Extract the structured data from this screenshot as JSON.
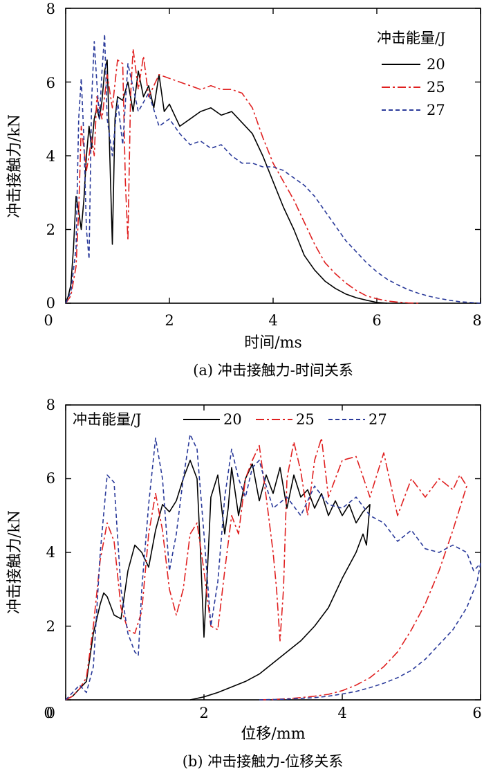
{
  "chart_data": [
    {
      "type": "line",
      "caption": "(a) 冲击接触力-时间关系",
      "xlabel": "时间/ms",
      "ylabel": "冲击接触力/kN",
      "xlim": [
        0,
        8
      ],
      "ylim": [
        0,
        8
      ],
      "xticks": [
        "0",
        "2",
        "4",
        "6",
        "8"
      ],
      "yticks": [
        "2",
        "4",
        "6",
        "8"
      ],
      "legend_title": "冲击能量/J",
      "legend_position": "top-right",
      "series": [
        {
          "name": "20",
          "color": "#000000",
          "dash": "solid",
          "x": [
            0,
            0.05,
            0.1,
            0.15,
            0.2,
            0.25,
            0.3,
            0.35,
            0.4,
            0.45,
            0.5,
            0.55,
            0.6,
            0.65,
            0.7,
            0.75,
            0.8,
            0.85,
            0.9,
            0.95,
            1.0,
            1.1,
            1.2,
            1.3,
            1.4,
            1.5,
            1.6,
            1.7,
            1.8,
            1.9,
            2.0,
            2.2,
            2.4,
            2.6,
            2.8,
            3.0,
            3.2,
            3.4,
            3.6,
            3.8,
            4.0,
            4.2,
            4.4,
            4.6,
            4.8,
            5.0,
            5.2,
            5.4,
            5.6,
            5.8,
            6.0,
            6.2
          ],
          "y": [
            0,
            0.2,
            0.5,
            1.5,
            2.9,
            2.5,
            2.0,
            2.8,
            4.0,
            4.8,
            4.2,
            5.0,
            5.3,
            5.0,
            5.5,
            6.3,
            6.6,
            4.0,
            1.6,
            5.0,
            5.6,
            5.5,
            6.0,
            5.2,
            6.3,
            5.6,
            5.9,
            5.3,
            6.2,
            5.2,
            5.4,
            4.8,
            5.0,
            5.2,
            5.3,
            5.1,
            5.2,
            4.9,
            4.6,
            4.0,
            3.3,
            2.6,
            2.0,
            1.3,
            0.9,
            0.6,
            0.4,
            0.25,
            0.15,
            0.08,
            0.02,
            0
          ]
        },
        {
          "name": "25",
          "color": "#e02020",
          "dash": "dashdot",
          "x": [
            0,
            0.1,
            0.2,
            0.25,
            0.3,
            0.35,
            0.4,
            0.45,
            0.5,
            0.55,
            0.6,
            0.7,
            0.8,
            0.9,
            1.0,
            1.1,
            1.15,
            1.2,
            1.25,
            1.3,
            1.4,
            1.5,
            1.6,
            1.8,
            2.0,
            2.2,
            2.4,
            2.6,
            2.8,
            3.0,
            3.2,
            3.4,
            3.6,
            3.8,
            4.0,
            4.2,
            4.4,
            4.6,
            4.8,
            5.0,
            5.2,
            5.4,
            5.6,
            5.8,
            6.0,
            6.2,
            6.4,
            6.6,
            6.8
          ],
          "y": [
            0,
            0.2,
            1.0,
            2.5,
            4.8,
            4.2,
            3.6,
            4.0,
            4.5,
            4.0,
            5.6,
            5.0,
            6.2,
            5.3,
            6.6,
            6.5,
            3.3,
            1.7,
            5.6,
            6.9,
            5.8,
            6.7,
            5.6,
            6.2,
            6.1,
            6.0,
            5.9,
            5.8,
            5.9,
            5.8,
            5.8,
            5.7,
            5.3,
            4.5,
            3.8,
            3.3,
            2.8,
            2.2,
            1.6,
            1.1,
            0.8,
            0.55,
            0.35,
            0.2,
            0.12,
            0.06,
            0.03,
            0.01,
            0
          ]
        },
        {
          "name": "27",
          "color": "#2a3a9a",
          "dash": "dashed",
          "x": [
            0,
            0.1,
            0.2,
            0.25,
            0.3,
            0.35,
            0.4,
            0.45,
            0.5,
            0.55,
            0.6,
            0.65,
            0.7,
            0.75,
            0.8,
            0.9,
            1.0,
            1.1,
            1.2,
            1.4,
            1.6,
            1.8,
            2.0,
            2.2,
            2.4,
            2.6,
            2.8,
            3.0,
            3.2,
            3.4,
            3.6,
            3.8,
            4.0,
            4.2,
            4.4,
            4.6,
            4.8,
            5.0,
            5.2,
            5.4,
            5.6,
            5.8,
            6.0,
            6.2,
            6.4,
            6.6,
            6.8,
            7.0,
            7.2,
            7.4,
            7.6,
            7.8,
            8.0
          ],
          "y": [
            0,
            0.3,
            1.5,
            5.0,
            6.1,
            4.5,
            2.0,
            1.2,
            5.5,
            7.1,
            6.0,
            5.0,
            6.3,
            7.3,
            5.0,
            4.0,
            5.5,
            4.3,
            6.5,
            5.2,
            5.7,
            4.8,
            5.0,
            4.6,
            4.3,
            4.4,
            4.2,
            4.3,
            4.0,
            3.8,
            3.8,
            3.7,
            3.7,
            3.6,
            3.4,
            3.2,
            2.9,
            2.5,
            2.1,
            1.7,
            1.4,
            1.1,
            0.85,
            0.65,
            0.5,
            0.37,
            0.27,
            0.19,
            0.13,
            0.08,
            0.04,
            0.02,
            0
          ]
        }
      ]
    },
    {
      "type": "line",
      "caption": "(b) 冲击接触力-位移关系",
      "xlabel": "位移/mm",
      "ylabel": "冲击接触力/kN",
      "xlim": [
        0,
        6
      ],
      "ylim": [
        0,
        8
      ],
      "xticks": [
        "0",
        "2",
        "4",
        "6"
      ],
      "yticks": [
        "2",
        "4",
        "6",
        "8"
      ],
      "legend_title": "冲击能量/J",
      "legend_position": "top",
      "series": [
        {
          "name": "20",
          "color": "#000000",
          "dash": "solid",
          "x": [
            0,
            0.1,
            0.2,
            0.3,
            0.4,
            0.5,
            0.55,
            0.6,
            0.7,
            0.8,
            0.9,
            1.0,
            1.1,
            1.2,
            1.3,
            1.4,
            1.5,
            1.6,
            1.7,
            1.8,
            1.9,
            1.95,
            2.0,
            2.05,
            2.1,
            2.2,
            2.3,
            2.35,
            2.4,
            2.5,
            2.6,
            2.7,
            2.8,
            2.9,
            3.0,
            3.1,
            3.2,
            3.3,
            3.4,
            3.5,
            3.6,
            3.7,
            3.8,
            3.9,
            4.0,
            4.1,
            4.2,
            4.3,
            4.4,
            4.35,
            4.3,
            4.2,
            4.0,
            3.8,
            3.6,
            3.4,
            3.2,
            3.0,
            2.8,
            2.6,
            2.4,
            2.2,
            2.0,
            1.8
          ],
          "y": [
            0,
            0.1,
            0.3,
            0.5,
            1.8,
            2.6,
            2.9,
            2.8,
            2.3,
            2.2,
            3.5,
            4.2,
            4.0,
            3.6,
            4.6,
            5.3,
            5.1,
            5.4,
            6.0,
            6.5,
            6.0,
            4.0,
            1.7,
            3.5,
            5.5,
            6.1,
            4.5,
            5.2,
            6.3,
            5.0,
            6.0,
            6.4,
            5.4,
            6.1,
            5.6,
            6.3,
            5.2,
            6.1,
            5.5,
            5.7,
            5.2,
            5.6,
            5.0,
            5.4,
            5.0,
            5.3,
            4.8,
            5.1,
            5.3,
            4.2,
            4.5,
            4.0,
            3.3,
            2.5,
            2.0,
            1.6,
            1.3,
            1.0,
            0.7,
            0.5,
            0.35,
            0.2,
            0.08,
            0
          ]
        },
        {
          "name": "25",
          "color": "#e02020",
          "dash": "dashdot",
          "x": [
            0,
            0.1,
            0.2,
            0.3,
            0.4,
            0.5,
            0.6,
            0.7,
            0.8,
            0.9,
            1.0,
            1.1,
            1.2,
            1.3,
            1.4,
            1.5,
            1.6,
            1.7,
            1.8,
            1.9,
            2.0,
            2.1,
            2.2,
            2.3,
            2.4,
            2.5,
            2.6,
            2.7,
            2.8,
            2.9,
            3.0,
            3.05,
            3.1,
            3.15,
            3.2,
            3.3,
            3.4,
            3.5,
            3.6,
            3.7,
            3.8,
            3.9,
            4.0,
            4.2,
            4.4,
            4.6,
            4.8,
            5.0,
            5.2,
            5.4,
            5.6,
            5.7,
            5.8,
            5.75,
            5.6,
            5.4,
            5.2,
            5.0,
            4.8,
            4.6,
            4.4,
            4.2,
            4.0,
            3.8,
            3.6,
            3.4,
            3.2,
            3.0,
            2.8
          ],
          "y": [
            0,
            0.1,
            0.3,
            0.6,
            2.0,
            3.8,
            4.8,
            4.3,
            2.5,
            1.9,
            1.8,
            2.4,
            4.5,
            5.6,
            4.6,
            3.0,
            2.3,
            3.0,
            4.5,
            4.8,
            3.5,
            2.0,
            1.9,
            3.5,
            5.0,
            4.5,
            6.0,
            6.5,
            6.9,
            5.5,
            4.0,
            3.0,
            1.6,
            3.0,
            6.0,
            7.0,
            6.2,
            5.0,
            6.5,
            7.1,
            5.5,
            6.0,
            6.5,
            6.6,
            5.5,
            6.7,
            5.0,
            6.0,
            5.5,
            6.0,
            5.7,
            6.1,
            5.8,
            5.5,
            4.6,
            3.5,
            2.6,
            1.9,
            1.3,
            0.9,
            0.6,
            0.4,
            0.25,
            0.15,
            0.1,
            0.06,
            0.03,
            0.01,
            0
          ]
        },
        {
          "name": "27",
          "color": "#2a3a9a",
          "dash": "dashed",
          "x": [
            0,
            0.1,
            0.2,
            0.3,
            0.4,
            0.5,
            0.6,
            0.7,
            0.8,
            0.9,
            1.0,
            1.05,
            1.1,
            1.2,
            1.3,
            1.4,
            1.5,
            1.6,
            1.7,
            1.8,
            1.9,
            2.0,
            2.1,
            2.2,
            2.3,
            2.4,
            2.5,
            2.6,
            2.7,
            2.8,
            2.9,
            3.0,
            3.2,
            3.4,
            3.6,
            3.8,
            4.0,
            4.2,
            4.4,
            4.6,
            4.8,
            5.0,
            5.2,
            5.4,
            5.6,
            5.8,
            5.9,
            6.0,
            5.95,
            5.8,
            5.6,
            5.4,
            5.2,
            5.0,
            4.8,
            4.6,
            4.4,
            4.2,
            4.0,
            3.8,
            3.6,
            3.4,
            3.2,
            3.0,
            2.8
          ],
          "y": [
            0,
            0.2,
            0.4,
            0.2,
            0.9,
            4.0,
            6.1,
            5.9,
            3.0,
            1.8,
            1.3,
            1.2,
            3.0,
            5.3,
            7.1,
            6.0,
            3.5,
            4.5,
            6.0,
            7.2,
            6.8,
            4.5,
            2.0,
            3.2,
            5.5,
            6.8,
            6.0,
            5.5,
            6.3,
            6.5,
            5.8,
            5.2,
            5.5,
            5.0,
            5.8,
            5.3,
            5.2,
            5.5,
            5.0,
            4.8,
            4.3,
            4.6,
            4.1,
            4.0,
            4.2,
            4.0,
            3.5,
            3.7,
            3.2,
            2.5,
            1.9,
            1.5,
            1.1,
            0.8,
            0.6,
            0.45,
            0.33,
            0.23,
            0.16,
            0.1,
            0.06,
            0.04,
            0.02,
            0.01,
            0
          ]
        }
      ]
    }
  ]
}
